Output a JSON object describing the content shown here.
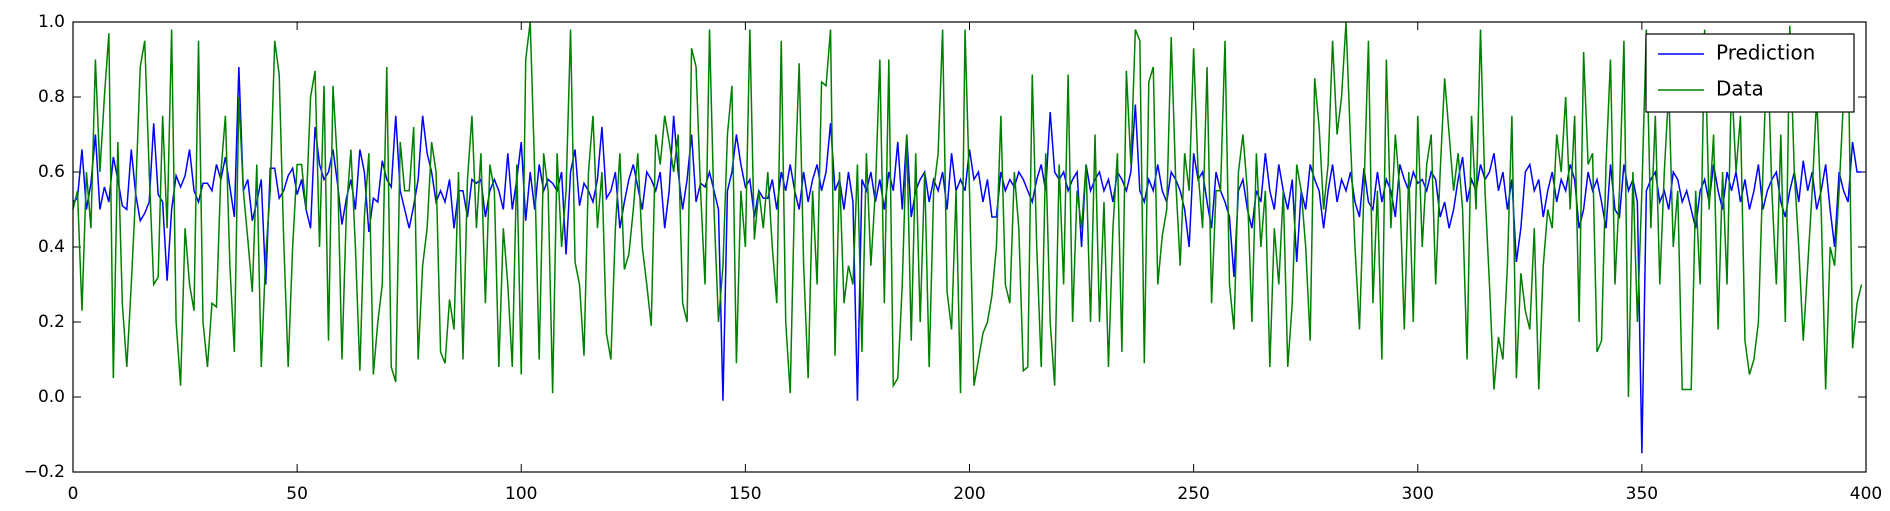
{
  "chart_data": {
    "type": "line",
    "x": [
      0,
      1,
      2,
      3,
      4,
      5,
      6,
      7,
      8,
      9,
      10,
      11,
      12,
      13,
      14,
      15,
      16,
      17,
      18,
      19,
      20,
      21,
      22,
      23,
      24,
      25,
      26,
      27,
      28,
      29,
      30,
      31,
      32,
      33,
      34,
      35,
      36,
      37,
      38,
      39,
      40,
      41,
      42,
      43,
      44,
      45,
      46,
      47,
      48,
      49,
      50,
      51,
      52,
      53,
      54,
      55,
      56,
      57,
      58,
      59,
      60,
      61,
      62,
      63,
      64,
      65,
      66,
      67,
      68,
      69,
      70,
      71,
      72,
      73,
      74,
      75,
      76,
      77,
      78,
      79,
      80,
      81,
      82,
      83,
      84,
      85,
      86,
      87,
      88,
      89,
      90,
      91,
      92,
      93,
      94,
      95,
      96,
      97,
      98,
      99,
      100,
      101,
      102,
      103,
      104,
      105,
      106,
      107,
      108,
      109,
      110,
      111,
      112,
      113,
      114,
      115,
      116,
      117,
      118,
      119,
      120,
      121,
      122,
      123,
      124,
      125,
      126,
      127,
      128,
      129,
      130,
      131,
      132,
      133,
      134,
      135,
      136,
      137,
      138,
      139,
      140,
      141,
      142,
      143,
      144,
      145,
      146,
      147,
      148,
      149,
      150,
      151,
      152,
      153,
      154,
      155,
      156,
      157,
      158,
      159,
      160,
      161,
      162,
      163,
      164,
      165,
      166,
      167,
      168,
      169,
      170,
      171,
      172,
      173,
      174,
      175,
      176,
      177,
      178,
      179,
      180,
      181,
      182,
      183,
      184,
      185,
      186,
      187,
      188,
      189,
      190,
      191,
      192,
      193,
      194,
      195,
      196,
      197,
      198,
      199,
      200,
      201,
      202,
      203,
      204,
      205,
      206,
      207,
      208,
      209,
      210,
      211,
      212,
      213,
      214,
      215,
      216,
      217,
      218,
      219,
      220,
      221,
      222,
      223,
      224,
      225,
      226,
      227,
      228,
      229,
      230,
      231,
      232,
      233,
      234,
      235,
      236,
      237,
      238,
      239,
      240,
      241,
      242,
      243,
      244,
      245,
      246,
      247,
      248,
      249,
      250,
      251,
      252,
      253,
      254,
      255,
      256,
      257,
      258,
      259,
      260,
      261,
      262,
      263,
      264,
      265,
      266,
      267,
      268,
      269,
      270,
      271,
      272,
      273,
      274,
      275,
      276,
      277,
      278,
      279,
      280,
      281,
      282,
      283,
      284,
      285,
      286,
      287,
      288,
      289,
      290,
      291,
      292,
      293,
      294,
      295,
      296,
      297,
      298,
      299,
      300,
      301,
      302,
      303,
      304,
      305,
      306,
      307,
      308,
      309,
      310,
      311,
      312,
      313,
      314,
      315,
      316,
      317,
      318,
      319,
      320,
      321,
      322,
      323,
      324,
      325,
      326,
      327,
      328,
      329,
      330,
      331,
      332,
      333,
      334,
      335,
      336,
      337,
      338,
      339,
      340,
      341,
      342,
      343,
      344,
      345,
      346,
      347,
      348,
      349,
      350,
      351,
      352,
      353,
      354,
      355,
      356,
      357,
      358,
      359,
      360,
      361,
      362,
      363,
      364,
      365,
      366,
      367,
      368,
      369,
      370,
      371,
      372,
      373,
      374,
      375,
      376,
      377,
      378,
      379,
      380,
      381,
      382,
      383,
      384,
      385,
      386,
      387,
      388,
      389,
      390,
      391,
      392,
      393,
      394,
      395,
      396,
      397,
      398,
      399
    ],
    "series": [
      {
        "name": "Prediction",
        "color": "#0000ff",
        "values": [
          0.52,
          0.53,
          0.66,
          0.5,
          0.57,
          0.7,
          0.5,
          0.56,
          0.52,
          0.64,
          0.58,
          0.51,
          0.5,
          0.66,
          0.54,
          0.47,
          0.49,
          0.52,
          0.73,
          0.54,
          0.52,
          0.31,
          0.5,
          0.59,
          0.56,
          0.59,
          0.66,
          0.55,
          0.52,
          0.57,
          0.57,
          0.55,
          0.62,
          0.58,
          0.64,
          0.56,
          0.48,
          0.88,
          0.55,
          0.58,
          0.47,
          0.52,
          0.58,
          0.3,
          0.61,
          0.61,
          0.53,
          0.55,
          0.59,
          0.61,
          0.54,
          0.58,
          0.5,
          0.45,
          0.72,
          0.62,
          0.58,
          0.6,
          0.66,
          0.57,
          0.46,
          0.53,
          0.58,
          0.5,
          0.66,
          0.6,
          0.44,
          0.53,
          0.52,
          0.63,
          0.58,
          0.56,
          0.75,
          0.55,
          0.5,
          0.45,
          0.51,
          0.58,
          0.75,
          0.65,
          0.6,
          0.52,
          0.55,
          0.52,
          0.58,
          0.45,
          0.55,
          0.55,
          0.48,
          0.58,
          0.57,
          0.58,
          0.48,
          0.55,
          0.58,
          0.55,
          0.5,
          0.65,
          0.5,
          0.58,
          0.68,
          0.47,
          0.6,
          0.5,
          0.62,
          0.55,
          0.58,
          0.57,
          0.55,
          0.6,
          0.38,
          0.6,
          0.66,
          0.51,
          0.57,
          0.55,
          0.52,
          0.58,
          0.72,
          0.53,
          0.55,
          0.6,
          0.45,
          0.52,
          0.58,
          0.62,
          0.56,
          0.5,
          0.6,
          0.58,
          0.55,
          0.6,
          0.45,
          0.55,
          0.75,
          0.6,
          0.5,
          0.58,
          0.7,
          0.52,
          0.57,
          0.56,
          0.6,
          0.55,
          0.5,
          -0.01,
          0.55,
          0.6,
          0.7,
          0.62,
          0.56,
          0.58,
          0.48,
          0.55,
          0.53,
          0.53,
          0.58,
          0.5,
          0.6,
          0.55,
          0.62,
          0.55,
          0.5,
          0.6,
          0.52,
          0.58,
          0.62,
          0.55,
          0.6,
          0.73,
          0.55,
          0.58,
          0.5,
          0.6,
          0.52,
          -0.01,
          0.58,
          0.55,
          0.6,
          0.52,
          0.58,
          0.5,
          0.6,
          0.55,
          0.68,
          0.5,
          0.7,
          0.48,
          0.55,
          0.58,
          0.6,
          0.52,
          0.58,
          0.55,
          0.6,
          0.5,
          0.65,
          0.55,
          0.58,
          0.55,
          0.66,
          0.58,
          0.6,
          0.52,
          0.58,
          0.48,
          0.48,
          0.6,
          0.55,
          0.58,
          0.56,
          0.6,
          0.58,
          0.55,
          0.52,
          0.58,
          0.62,
          0.55,
          0.76,
          0.6,
          0.58,
          0.6,
          0.55,
          0.58,
          0.6,
          0.4,
          0.62,
          0.55,
          0.58,
          0.6,
          0.55,
          0.58,
          0.52,
          0.6,
          0.58,
          0.55,
          0.6,
          0.78,
          0.55,
          0.52,
          0.58,
          0.55,
          0.62,
          0.55,
          0.52,
          0.6,
          0.58,
          0.55,
          0.5,
          0.4,
          0.65,
          0.58,
          0.6,
          0.52,
          0.45,
          0.6,
          0.55,
          0.52,
          0.48,
          0.32,
          0.55,
          0.58,
          0.5,
          0.45,
          0.55,
          0.52,
          0.65,
          0.55,
          0.5,
          0.62,
          0.55,
          0.5,
          0.58,
          0.36,
          0.55,
          0.5,
          0.62,
          0.58,
          0.55,
          0.45,
          0.55,
          0.62,
          0.52,
          0.58,
          0.55,
          0.6,
          0.52,
          0.48,
          0.61,
          0.52,
          0.5,
          0.6,
          0.52,
          0.58,
          0.55,
          0.48,
          0.62,
          0.58,
          0.55,
          0.6,
          0.57,
          0.58,
          0.55,
          0.6,
          0.58,
          0.48,
          0.52,
          0.45,
          0.5,
          0.58,
          0.64,
          0.52,
          0.58,
          0.55,
          0.62,
          0.58,
          0.6,
          0.65,
          0.55,
          0.6,
          0.5,
          0.58,
          0.36,
          0.45,
          0.6,
          0.62,
          0.55,
          0.58,
          0.48,
          0.55,
          0.6,
          0.52,
          0.58,
          0.55,
          0.62,
          0.58,
          0.45,
          0.5,
          0.6,
          0.55,
          0.58,
          0.52,
          0.45,
          0.62,
          0.5,
          0.48,
          0.62,
          0.55,
          0.58,
          0.52,
          -0.15,
          0.55,
          0.58,
          0.6,
          0.52,
          0.55,
          0.5,
          0.6,
          0.58,
          0.52,
          0.55,
          0.5,
          0.45,
          0.55,
          0.58,
          0.52,
          0.62,
          0.55,
          0.5,
          0.6,
          0.55,
          0.6,
          0.52,
          0.58,
          0.5,
          0.55,
          0.62,
          0.5,
          0.55,
          0.58,
          0.6,
          0.52,
          0.48,
          0.55,
          0.6,
          0.52,
          0.63,
          0.55,
          0.6,
          0.5,
          0.55,
          0.62,
          0.5,
          0.4,
          0.6,
          0.55,
          0.52,
          0.68,
          0.6,
          0.6
        ]
      },
      {
        "name": "Data",
        "color": "#008000",
        "values": [
          0.5,
          0.55,
          0.23,
          0.6,
          0.45,
          0.9,
          0.6,
          0.8,
          0.97,
          0.05,
          0.68,
          0.25,
          0.08,
          0.3,
          0.55,
          0.88,
          0.95,
          0.6,
          0.3,
          0.32,
          0.75,
          0.45,
          0.98,
          0.2,
          0.03,
          0.45,
          0.3,
          0.23,
          0.95,
          0.2,
          0.08,
          0.25,
          0.24,
          0.6,
          0.75,
          0.35,
          0.12,
          0.8,
          0.55,
          0.42,
          0.28,
          0.62,
          0.08,
          0.38,
          0.55,
          0.95,
          0.86,
          0.42,
          0.08,
          0.4,
          0.62,
          0.62,
          0.5,
          0.8,
          0.87,
          0.4,
          0.83,
          0.15,
          0.83,
          0.62,
          0.1,
          0.5,
          0.66,
          0.4,
          0.07,
          0.48,
          0.65,
          0.06,
          0.2,
          0.3,
          0.88,
          0.08,
          0.04,
          0.68,
          0.55,
          0.55,
          0.72,
          0.1,
          0.35,
          0.45,
          0.68,
          0.6,
          0.12,
          0.09,
          0.26,
          0.18,
          0.6,
          0.1,
          0.58,
          0.75,
          0.45,
          0.65,
          0.25,
          0.62,
          0.55,
          0.08,
          0.45,
          0.3,
          0.08,
          0.62,
          0.06,
          0.9,
          1.0,
          0.6,
          0.1,
          0.65,
          0.55,
          0.01,
          0.65,
          0.4,
          0.55,
          0.98,
          0.36,
          0.3,
          0.11,
          0.6,
          0.75,
          0.45,
          0.6,
          0.17,
          0.1,
          0.45,
          0.65,
          0.34,
          0.38,
          0.5,
          0.65,
          0.4,
          0.3,
          0.19,
          0.7,
          0.62,
          0.75,
          0.68,
          0.6,
          0.7,
          0.25,
          0.2,
          0.93,
          0.88,
          0.55,
          0.3,
          0.98,
          0.5,
          0.2,
          0.35,
          0.7,
          0.83,
          0.09,
          0.55,
          0.4,
          0.98,
          0.42,
          0.55,
          0.45,
          0.6,
          0.4,
          0.25,
          0.95,
          0.2,
          0.01,
          0.55,
          0.89,
          0.35,
          0.05,
          0.55,
          0.3,
          0.84,
          0.83,
          0.98,
          0.11,
          0.6,
          0.25,
          0.35,
          0.3,
          0.62,
          0.12,
          0.65,
          0.35,
          0.55,
          0.9,
          0.25,
          0.9,
          0.03,
          0.05,
          0.3,
          0.7,
          0.15,
          0.65,
          0.2,
          0.6,
          0.08,
          0.55,
          0.65,
          0.98,
          0.28,
          0.18,
          0.55,
          0.01,
          0.98,
          0.55,
          0.03,
          0.1,
          0.17,
          0.2,
          0.27,
          0.4,
          0.75,
          0.3,
          0.25,
          0.6,
          0.45,
          0.07,
          0.08,
          0.86,
          0.4,
          0.08,
          0.65,
          0.2,
          0.03,
          0.62,
          0.3,
          0.86,
          0.2,
          0.55,
          0.45,
          0.62,
          0.2,
          0.7,
          0.2,
          0.52,
          0.08,
          0.45,
          0.65,
          0.12,
          0.87,
          0.62,
          0.98,
          0.95,
          0.09,
          0.84,
          0.88,
          0.3,
          0.43,
          0.5,
          0.96,
          0.58,
          0.35,
          0.65,
          0.55,
          0.93,
          0.6,
          0.45,
          0.88,
          0.25,
          0.55,
          0.55,
          0.95,
          0.3,
          0.18,
          0.6,
          0.7,
          0.55,
          0.2,
          0.65,
          0.4,
          0.55,
          0.08,
          0.45,
          0.3,
          0.55,
          0.08,
          0.25,
          0.62,
          0.55,
          0.4,
          0.15,
          0.85,
          0.72,
          0.5,
          0.62,
          0.95,
          0.7,
          0.8,
          1.0,
          0.68,
          0.4,
          0.18,
          0.55,
          0.95,
          0.25,
          0.55,
          0.1,
          0.9,
          0.45,
          0.7,
          0.55,
          0.18,
          0.6,
          0.2,
          0.75,
          0.4,
          0.62,
          0.7,
          0.3,
          0.6,
          0.85,
          0.7,
          0.55,
          0.65,
          0.5,
          0.1,
          0.75,
          0.5,
          0.98,
          0.55,
          0.3,
          0.02,
          0.16,
          0.1,
          0.35,
          0.75,
          0.05,
          0.33,
          0.23,
          0.18,
          0.45,
          0.02,
          0.35,
          0.5,
          0.45,
          0.7,
          0.6,
          0.8,
          0.5,
          0.75,
          0.2,
          0.92,
          0.62,
          0.65,
          0.12,
          0.15,
          0.62,
          0.9,
          0.3,
          0.55,
          0.95,
          0.0,
          0.6,
          0.2,
          0.55,
          0.98,
          0.45,
          0.75,
          0.3,
          0.6,
          0.82,
          0.4,
          0.55,
          0.02,
          0.02,
          0.02,
          0.55,
          0.3,
          0.98,
          0.5,
          0.7,
          0.18,
          0.6,
          0.3,
          0.85,
          0.6,
          0.75,
          0.15,
          0.06,
          0.1,
          0.2,
          0.6,
          0.95,
          0.55,
          0.3,
          0.7,
          0.2,
          0.99,
          0.6,
          0.4,
          0.15,
          0.35,
          0.55,
          0.8,
          0.5,
          0.02,
          0.4,
          0.35,
          0.55,
          0.8,
          0.95,
          0.13,
          0.25,
          0.3
        ]
      }
    ],
    "xlim": [
      0,
      400
    ],
    "xticks": [
      0,
      50,
      100,
      150,
      200,
      250,
      300,
      350,
      400
    ],
    "ylim": [
      -0.2,
      1.0
    ],
    "yticks": [
      {
        "value": -0.2,
        "label": "−0.2"
      },
      {
        "value": 0,
        "label": "0.0"
      },
      {
        "value": 0.2,
        "label": "0.2"
      },
      {
        "value": 0.4,
        "label": "0.4"
      },
      {
        "value": 0.6,
        "label": "0.6"
      },
      {
        "value": 0.8,
        "label": "0.8"
      },
      {
        "value": 1.0,
        "label": "1.0"
      }
    ],
    "grid": false,
    "legend": "upper right"
  }
}
